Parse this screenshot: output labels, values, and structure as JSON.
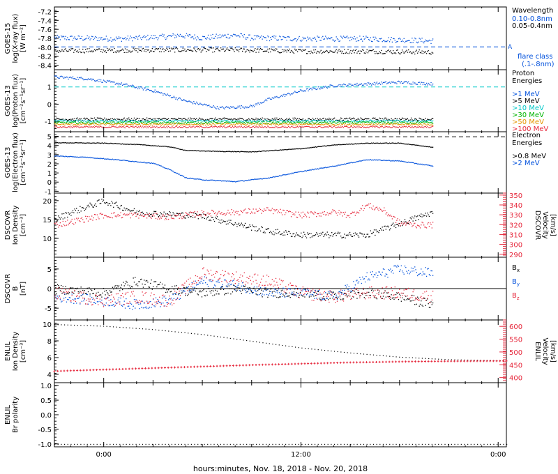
{
  "x_axis": {
    "caption": "hours:minutes, Nov. 18, 2018 - Nov. 20, 2018",
    "ticks": [
      {
        "label": "0:00",
        "hours": 0
      },
      {
        "label": "12:00",
        "hours": 12
      },
      {
        "label": "0:00",
        "hours": 24
      }
    ],
    "range_hours": [
      -3,
      24.5
    ]
  },
  "colors": {
    "black": "#000000",
    "blue": "#0050dc",
    "cyan": "#00c8c8",
    "green": "#00b400",
    "orange": "#e69600",
    "red": "#e6283c",
    "dash_blue": "#0050dc"
  },
  "chart_data": [
    {
      "id": "goes15-xray",
      "type": "scatter",
      "ylabel_lines": [
        "GOES-15",
        "log(X-ray flux)",
        "[W m⁻²]"
      ],
      "ylim": [
        -8.5,
        -7.1
      ],
      "yticks": [
        -7.2,
        -7.4,
        -7.6,
        -7.8,
        -8.0,
        -8.2,
        -8.4
      ],
      "ytick_labels": [
        "-7.2",
        "-7.4",
        "-7.6",
        "-7.8",
        "-8.0",
        "-8.2",
        "-8.4"
      ],
      "legend_title": "Wavelength",
      "legend": [
        {
          "label": "0.10-0.8nm",
          "color": "blue"
        },
        {
          "label": "0.05-0.4nm",
          "color": "black"
        }
      ],
      "extra_labels": [
        {
          "label": "A",
          "color": "blue"
        },
        {
          "label": "flare class",
          "color": "blue"
        },
        {
          "label": "(.1-.8nm)",
          "color": "blue"
        }
      ],
      "threshold": -7.99,
      "series": [
        {
          "name": "0.10-0.8nm",
          "color": "blue",
          "x": [
            -3,
            1,
            4,
            4.5,
            6,
            8,
            9,
            12,
            16,
            20
          ],
          "y": [
            -7.78,
            -7.8,
            -7.75,
            -7.72,
            -7.78,
            -7.72,
            -7.78,
            -7.8,
            -7.8,
            -7.85
          ],
          "noise": 0.06
        },
        {
          "name": "0.05-0.4nm",
          "color": "black",
          "x": [
            -3,
            4,
            8,
            12,
            16,
            20
          ],
          "y": [
            -8.07,
            -8.05,
            -8.05,
            -8.08,
            -8.08,
            -8.1
          ],
          "noise": 0.05
        }
      ]
    },
    {
      "id": "goes13-proton",
      "type": "scatter",
      "ylabel_lines": [
        "GOES-13",
        "log(Proton flux)",
        "[cm⁻²s⁻¹sr⁻¹]"
      ],
      "ylim": [
        -1.6,
        2.0
      ],
      "yticks": [
        1,
        0,
        -1
      ],
      "ytick_labels": [
        "1",
        "0",
        "-1"
      ],
      "legend_title": "Proton Energies",
      "legend": [
        {
          "label": ">1 MeV",
          "color": "blue"
        },
        {
          "label": ">5 MeV",
          "color": "black"
        },
        {
          "label": ">10 MeV",
          "color": "cyan"
        },
        {
          "label": ">30 MeV",
          "color": "green"
        },
        {
          "label": ">50 MeV",
          "color": "orange"
        },
        {
          "label": ">100 MeV",
          "color": "red"
        }
      ],
      "threshold": 1.0,
      "series": [
        {
          "name": ">1 MeV",
          "color": "blue",
          "x": [
            -3,
            -1,
            1,
            3,
            5,
            7,
            9,
            10,
            12,
            14,
            16,
            18,
            20
          ],
          "y": [
            1.6,
            1.5,
            1.2,
            0.8,
            0.2,
            -0.2,
            -0.1,
            0.3,
            0.8,
            1.1,
            1.2,
            1.3,
            1.2
          ],
          "noise": 0.08
        },
        {
          "name": ">5 MeV",
          "color": "black",
          "x": [
            -3,
            20
          ],
          "y": [
            -0.85,
            -0.85
          ],
          "noise": 0.08
        },
        {
          "name": ">10 MeV",
          "color": "cyan",
          "x": [
            -3,
            20
          ],
          "y": [
            -0.95,
            -0.95
          ],
          "noise": 0.06
        },
        {
          "name": ">30 MeV",
          "color": "green",
          "x": [
            -3,
            20
          ],
          "y": [
            -1.05,
            -1.05
          ],
          "noise": 0.06
        },
        {
          "name": ">50 MeV",
          "color": "orange",
          "x": [
            -3,
            20
          ],
          "y": [
            -1.15,
            -1.15
          ],
          "noise": 0.05
        },
        {
          "name": ">100 MeV",
          "color": "red",
          "x": [
            -3,
            20
          ],
          "y": [
            -1.3,
            -1.3
          ],
          "noise": 0.05
        }
      ]
    },
    {
      "id": "goes13-electron",
      "type": "line",
      "ylabel_lines": [
        "GOES-13",
        "log(Electron flux)",
        "[cm⁻²s⁻¹sr⁻¹]"
      ],
      "ylim": [
        -1.2,
        5.5
      ],
      "yticks": [
        5,
        4,
        3,
        2,
        1,
        0,
        -1
      ],
      "ytick_labels": [
        "5",
        "4",
        "3",
        "2",
        "1",
        "0",
        "-1"
      ],
      "legend_title": "Electron Energies",
      "legend": [
        {
          "label": ">0.8 MeV",
          "color": "black"
        },
        {
          "label": ">2 MeV",
          "color": "blue"
        }
      ],
      "threshold": 4.95,
      "series": [
        {
          "name": ">0.8 MeV",
          "color": "black",
          "x": [
            -3,
            0,
            2,
            4,
            5,
            7,
            9,
            12,
            14,
            16,
            18,
            20
          ],
          "y": [
            4.35,
            4.3,
            4.15,
            3.9,
            3.5,
            3.4,
            3.35,
            3.7,
            4.1,
            4.3,
            4.3,
            3.85
          ],
          "noise": 0.03
        },
        {
          "name": ">2 MeV",
          "color": "blue",
          "x": [
            -3,
            -1,
            1,
            3,
            4,
            5,
            6,
            8,
            10,
            12,
            14,
            16,
            18,
            20
          ],
          "y": [
            2.9,
            2.75,
            2.45,
            2.1,
            1.4,
            0.5,
            0.3,
            0.1,
            0.5,
            1.2,
            1.8,
            2.5,
            2.35,
            1.8
          ],
          "noise": 0.04
        }
      ]
    },
    {
      "id": "dscovr-plasma",
      "type": "scatter",
      "ylabel_lines": [
        "DSCOVR",
        "Ion Density",
        "[cm⁻³]"
      ],
      "ylim": [
        5,
        22
      ],
      "yticks": [
        20,
        15,
        10
      ],
      "ytick_labels": [
        "20",
        "15",
        "10"
      ],
      "right_ylabel_lines": [
        "DSCOVR",
        "Velocity",
        "[km/s]"
      ],
      "right_ylim": [
        287,
        352
      ],
      "right_yticks": [
        350,
        340,
        330,
        320,
        310,
        300,
        290
      ],
      "right_ytick_labels": [
        "350",
        "340",
        "330",
        "320",
        "310",
        "300",
        "290"
      ],
      "series": [
        {
          "name": "Ion Density",
          "color": "black",
          "axis": "left",
          "x": [
            -3,
            -2,
            0,
            1,
            2,
            4,
            6,
            8,
            10,
            12,
            14,
            16,
            18,
            20
          ],
          "y": [
            15,
            17,
            20,
            18.5,
            17,
            16.5,
            16,
            14,
            12,
            11,
            11,
            11,
            14,
            17
          ],
          "noise": 0.8
        },
        {
          "name": "Velocity",
          "color": "red",
          "axis": "right",
          "x": [
            -3,
            0,
            2,
            4,
            6,
            8,
            10,
            12,
            14,
            15,
            16,
            17,
            18,
            19,
            20
          ],
          "y": [
            320,
            330,
            330,
            328,
            332,
            333,
            335,
            330,
            333,
            330,
            340,
            335,
            322,
            320,
            320
          ],
          "noise": 3.0
        }
      ]
    },
    {
      "id": "dscovr-mag",
      "type": "scatter",
      "ylabel_lines": [
        "DSCOVR",
        "B",
        "[nT]"
      ],
      "ylim": [
        -8,
        8
      ],
      "yticks": [
        5,
        0,
        -5
      ],
      "ytick_labels": [
        "5",
        "0",
        "-5"
      ],
      "legend": [
        {
          "label": "Bx",
          "color": "black"
        },
        {
          "label": "By",
          "color": "blue"
        },
        {
          "label": "Bz",
          "color": "red"
        }
      ],
      "zero_line": 0,
      "series": [
        {
          "name": "Bx",
          "color": "black",
          "x": [
            -3,
            0,
            2,
            4,
            6,
            8,
            10,
            12,
            14,
            16,
            18,
            20
          ],
          "y": [
            0,
            -1,
            2,
            0,
            -1,
            0,
            -1,
            -1,
            -2,
            -1,
            -2,
            -4
          ],
          "noise": 1.2
        },
        {
          "name": "By",
          "color": "blue",
          "x": [
            -3,
            0,
            2,
            4,
            6,
            8,
            10,
            12,
            14,
            16,
            18,
            20
          ],
          "y": [
            -2,
            -3,
            -4,
            -3,
            2,
            1,
            -1,
            -1,
            -2,
            3,
            5,
            4
          ],
          "noise": 1.3
        },
        {
          "name": "Bz",
          "color": "red",
          "x": [
            -3,
            0,
            2,
            4,
            6,
            8,
            10,
            12,
            14,
            16,
            18,
            20
          ],
          "y": [
            -1,
            -3,
            -2,
            -3,
            4,
            3,
            2,
            -1,
            -2,
            -1,
            -1,
            -2
          ],
          "noise": 1.6
        }
      ]
    },
    {
      "id": "enlil-plasma",
      "type": "line",
      "ylabel_lines": [
        "ENLIL",
        "Ion Density",
        "[cm⁻³]"
      ],
      "ylim": [
        3,
        10.5
      ],
      "yticks": [
        10,
        8,
        6,
        4
      ],
      "ytick_labels": [
        "10",
        "8",
        "6",
        "4"
      ],
      "right_ylabel_lines": [
        "ENLIL",
        "Velocity",
        "[km/s]"
      ],
      "right_ylim": [
        380,
        625
      ],
      "right_yticks": [
        600,
        550,
        500,
        450,
        400
      ],
      "right_ytick_labels": [
        "600",
        "550",
        "500",
        "450",
        "400"
      ],
      "series": [
        {
          "name": "Ion Density",
          "color": "black",
          "axis": "left",
          "x": [
            -3,
            0,
            3,
            6,
            9,
            12,
            15,
            18,
            21,
            24.5
          ],
          "y": [
            10.0,
            9.8,
            9.4,
            8.8,
            8.0,
            7.2,
            6.6,
            6.1,
            5.8,
            5.65
          ],
          "noise": 0
        },
        {
          "name": "Velocity",
          "color": "red",
          "axis": "right",
          "x": [
            -3,
            0,
            3,
            6,
            9,
            12,
            15,
            18,
            21,
            24.5
          ],
          "y": [
            425,
            431,
            437,
            443,
            449,
            454,
            459,
            462,
            464,
            465
          ],
          "noise": 0
        }
      ]
    },
    {
      "id": "enlil-bpolarity",
      "type": "line",
      "ylabel_lines": [
        "ENLIL",
        "Br polarity"
      ],
      "ylim": [
        -1.1,
        1.1
      ],
      "yticks": [
        1.0,
        0.5,
        0.0,
        -0.5,
        -1.0
      ],
      "ytick_labels": [
        "1.0",
        "0.5",
        "0.0",
        "-0.5",
        "-1.0"
      ],
      "series": [
        {
          "name": "Br polarity",
          "color": "black",
          "axis": "left",
          "x": [
            -3,
            24.5
          ],
          "y": [
            -1.0,
            -1.0
          ],
          "noise": 0
        }
      ]
    }
  ]
}
